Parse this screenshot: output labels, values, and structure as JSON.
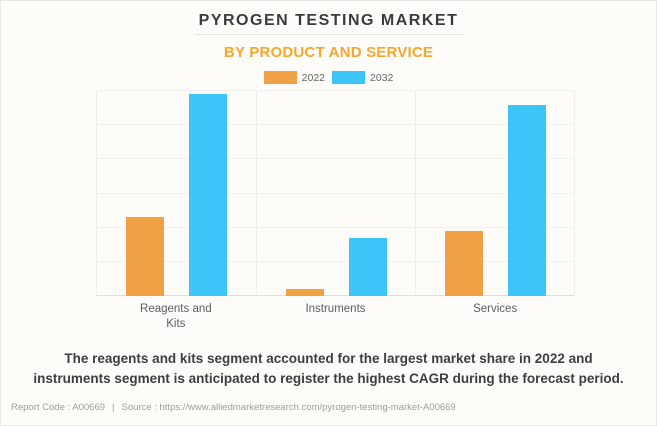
{
  "header": {
    "title": "PYROGEN TESTING MARKET",
    "subtitle": "BY PRODUCT AND SERVICE"
  },
  "legend": [
    {
      "label": "2022",
      "color": "#EFA143"
    },
    {
      "label": "2032",
      "color": "#3BC5F9"
    }
  ],
  "chart_data": {
    "type": "bar",
    "title": "PYROGEN TESTING MARKET",
    "subtitle": "BY PRODUCT AND SERVICE",
    "categories": [
      "Reagents and Kits",
      "Instruments",
      "Services"
    ],
    "series": [
      {
        "name": "2022",
        "color": "#EFA143",
        "values": [
          2.3,
          0.2,
          1.9
        ]
      },
      {
        "name": "2032",
        "color": "#3BC5F9",
        "values": [
          5.9,
          1.7,
          5.6
        ]
      }
    ],
    "xlabel": "",
    "ylabel": "",
    "ylim": [
      0,
      6
    ],
    "yticks_labeled": false,
    "units": "relative gridline units (no numeric axis labels shown; 1 unit per gridline)",
    "grid": true,
    "legend_position": "top"
  },
  "annotation": {
    "lines": [
      "The reagents and kits segment accounted for the largest market share in 2022 and",
      "instruments segment is anticipated to register the highest CAGR during the forecast period."
    ]
  },
  "footer": {
    "report_code": "Report Code : A00669",
    "separator": "|",
    "source": "Source : https://www.alliedmarketresearch.com/pyrogen-testing-market-A00669"
  },
  "colors": {
    "background": "#FDFCF9",
    "accent_orange": "#F7A72E",
    "series_2022": "#EFA143",
    "series_2032": "#3BC5F9",
    "title_text": "#3C3C3C",
    "axis_label_text": "#5F5F5F",
    "footer_text": "#9E9D9A"
  }
}
